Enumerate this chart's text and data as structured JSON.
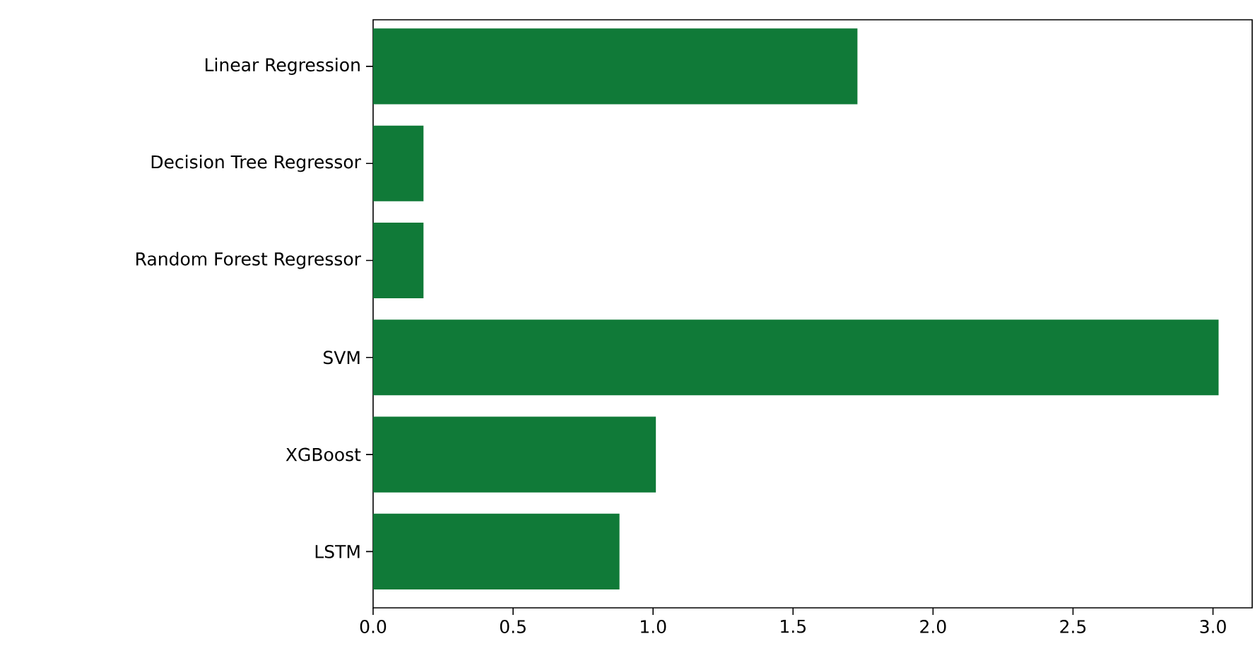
{
  "chart_data": {
    "type": "bar",
    "orientation": "horizontal",
    "categories": [
      "Linear Regression",
      "Decision Tree Regressor",
      "Random Forest Regressor",
      "SVM",
      "XGBoost",
      "LSTM"
    ],
    "values": [
      1.73,
      0.18,
      0.18,
      3.02,
      1.01,
      0.88
    ],
    "color": "#107a38",
    "xlim": [
      0,
      3.14
    ],
    "xticks": [
      {
        "value": 0,
        "label": "0.0"
      },
      0.5,
      {
        "value": 1,
        "label": "1.0"
      },
      1.5,
      {
        "value": 2,
        "label": "2.0"
      },
      2.5,
      {
        "value": 3,
        "label": "3.0"
      }
    ]
  }
}
